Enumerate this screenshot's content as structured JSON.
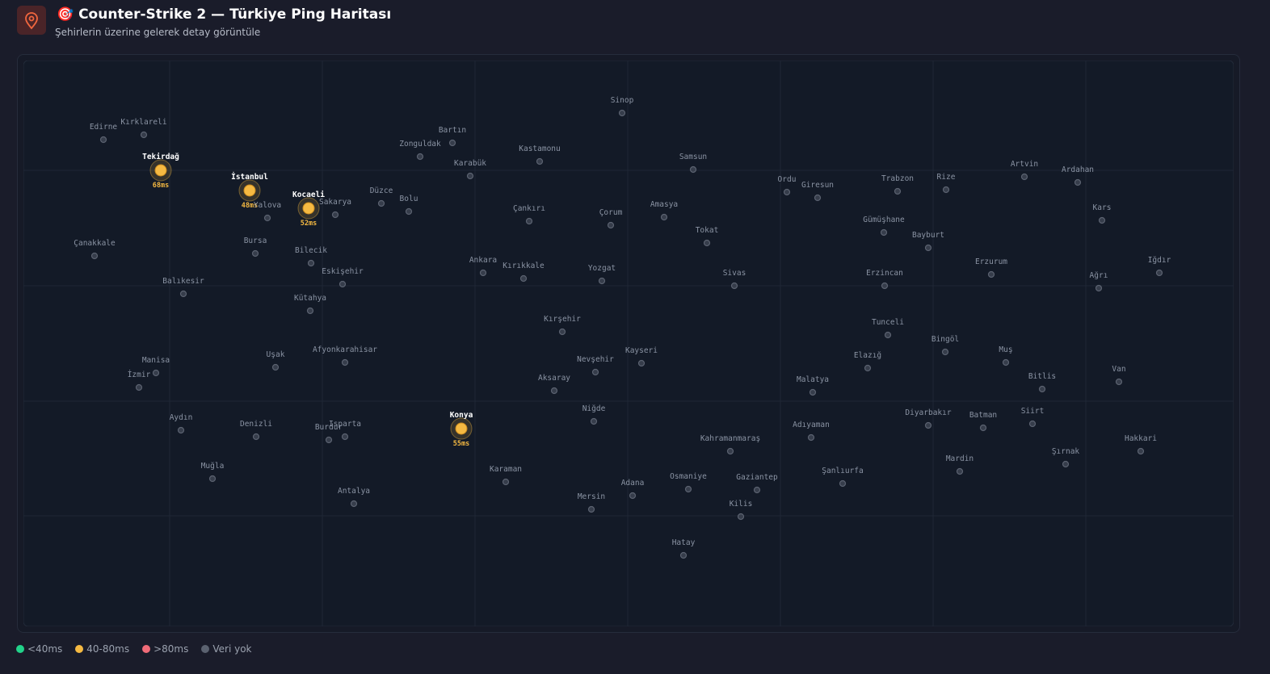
{
  "header": {
    "title": "🎯 Counter-Strike 2 — Türkiye Ping Haritası",
    "subtitle": "Şehirlerin üzerine gelerek detay görüntüle"
  },
  "cities": [
    {
      "name": "Edirne"
    },
    {
      "name": "Kırklareli"
    },
    {
      "name": "Tekirdağ",
      "ping": "68ms"
    },
    {
      "name": "İstanbul",
      "ping": "48ms"
    },
    {
      "name": "Kocaeli",
      "ping": "52ms"
    },
    {
      "name": "Yalova"
    },
    {
      "name": "Sakarya"
    },
    {
      "name": "Düzce"
    },
    {
      "name": "Bolu"
    },
    {
      "name": "Zonguldak"
    },
    {
      "name": "Bartın"
    },
    {
      "name": "Karabük"
    },
    {
      "name": "Kastamonu"
    },
    {
      "name": "Sinop"
    },
    {
      "name": "Samsun"
    },
    {
      "name": "Çankırı"
    },
    {
      "name": "Çorum"
    },
    {
      "name": "Amasya"
    },
    {
      "name": "Tokat"
    },
    {
      "name": "Ordu"
    },
    {
      "name": "Giresun"
    },
    {
      "name": "Trabzon"
    },
    {
      "name": "Rize"
    },
    {
      "name": "Artvin"
    },
    {
      "name": "Ardahan"
    },
    {
      "name": "Kars"
    },
    {
      "name": "Gümüşhane"
    },
    {
      "name": "Bayburt"
    },
    {
      "name": "Erzurum"
    },
    {
      "name": "Iğdır"
    },
    {
      "name": "Ağrı"
    },
    {
      "name": "Erzincan"
    },
    {
      "name": "Sivas"
    },
    {
      "name": "Çanakkale"
    },
    {
      "name": "Bursa"
    },
    {
      "name": "Bilecik"
    },
    {
      "name": "Eskişehir"
    },
    {
      "name": "Ankara"
    },
    {
      "name": "Kırıkkale"
    },
    {
      "name": "Yozgat"
    },
    {
      "name": "Balıkesir"
    },
    {
      "name": "Kütahya"
    },
    {
      "name": "Kırşehir"
    },
    {
      "name": "Tunceli"
    },
    {
      "name": "Bingöl"
    },
    {
      "name": "Muş"
    },
    {
      "name": "Elazığ"
    },
    {
      "name": "Manisa"
    },
    {
      "name": "Uşak"
    },
    {
      "name": "Afyonkarahisar"
    },
    {
      "name": "Nevşehir"
    },
    {
      "name": "Kayseri"
    },
    {
      "name": "İzmir"
    },
    {
      "name": "Aksaray"
    },
    {
      "name": "Malatya"
    },
    {
      "name": "Bitlis"
    },
    {
      "name": "Van"
    },
    {
      "name": "Aydın"
    },
    {
      "name": "Denizli"
    },
    {
      "name": "Burdur"
    },
    {
      "name": "Isparta"
    },
    {
      "name": "Konya",
      "ping": "55ms"
    },
    {
      "name": "Niğde"
    },
    {
      "name": "Diyarbakır"
    },
    {
      "name": "Batman"
    },
    {
      "name": "Siirt"
    },
    {
      "name": "Adıyaman"
    },
    {
      "name": "Kahramanmaraş"
    },
    {
      "name": "Hakkari"
    },
    {
      "name": "Şırnak"
    },
    {
      "name": "Muğla"
    },
    {
      "name": "Karaman"
    },
    {
      "name": "Mardin"
    },
    {
      "name": "Şanlıurfa"
    },
    {
      "name": "Antalya"
    },
    {
      "name": "Adana"
    },
    {
      "name": "Osmaniye"
    },
    {
      "name": "Gaziantep"
    },
    {
      "name": "Mersin"
    },
    {
      "name": "Kilis"
    },
    {
      "name": "Hatay"
    }
  ],
  "legend": [
    {
      "label": "<40ms",
      "color": "#22d38a"
    },
    {
      "label": "40-80ms",
      "color": "#f5b942"
    },
    {
      "label": ">80ms",
      "color": "#f06b78"
    },
    {
      "label": "Veri yok",
      "color": "#5b6270"
    }
  ]
}
